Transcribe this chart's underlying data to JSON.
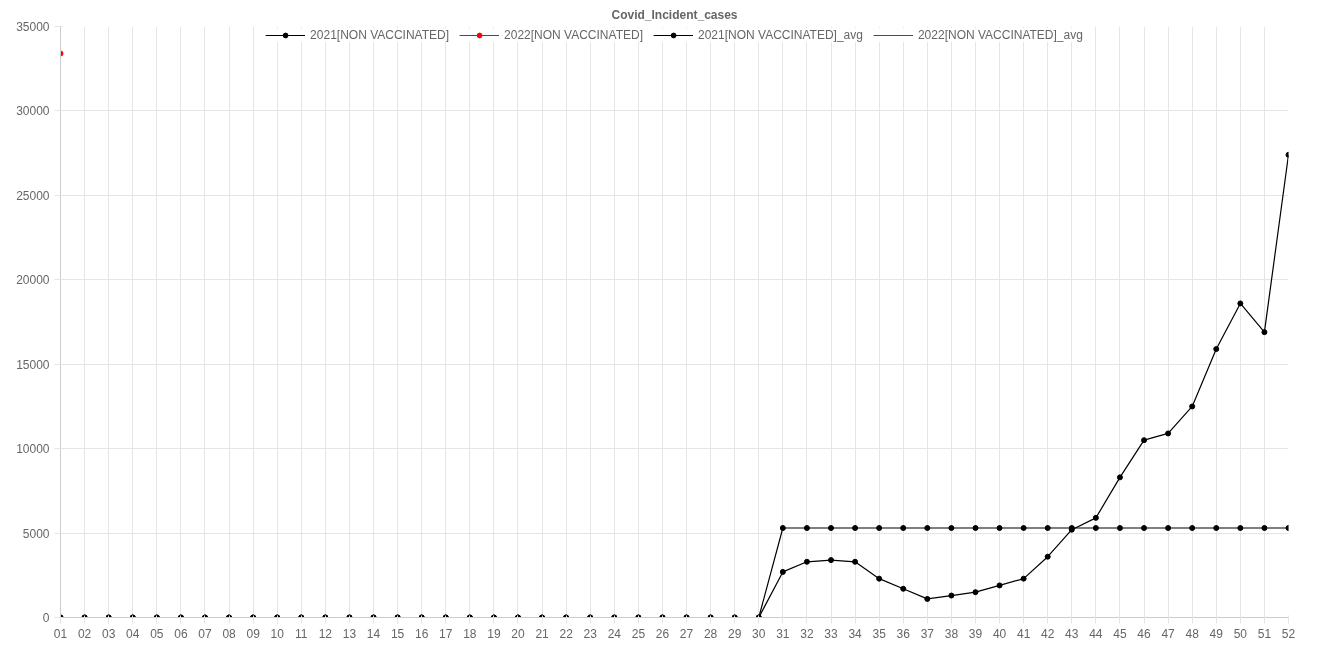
{
  "chart_data": {
    "type": "line",
    "title": "Covid_Incident_cases",
    "categories": [
      "01",
      "02",
      "03",
      "04",
      "05",
      "06",
      "07",
      "08",
      "09",
      "10",
      "11",
      "12",
      "13",
      "14",
      "15",
      "16",
      "17",
      "18",
      "19",
      "20",
      "21",
      "22",
      "23",
      "24",
      "25",
      "26",
      "27",
      "28",
      "29",
      "30",
      "31",
      "32",
      "33",
      "34",
      "35",
      "36",
      "37",
      "38",
      "39",
      "40",
      "41",
      "42",
      "43",
      "44",
      "45",
      "46",
      "47",
      "48",
      "49",
      "50",
      "51",
      "52"
    ],
    "series": [
      {
        "name": "2021[NON VACCINATED]",
        "color": "#000000",
        "values": [
          0,
          0,
          0,
          0,
          0,
          0,
          0,
          0,
          0,
          0,
          0,
          0,
          0,
          0,
          0,
          0,
          0,
          0,
          0,
          0,
          0,
          0,
          0,
          0,
          0,
          0,
          0,
          0,
          0,
          0,
          2700,
          3300,
          3400,
          3300,
          2300,
          1700,
          1100,
          1300,
          1500,
          1900,
          2300,
          3600,
          5200,
          5900,
          8300,
          10500,
          10900,
          12500,
          15900,
          18600,
          16900,
          27400
        ]
      },
      {
        "name": "2022[NON VACCINATED]",
        "color": "#ff0000",
        "values": [
          33400,
          null,
          null,
          null,
          null,
          null,
          null,
          null,
          null,
          null,
          null,
          null,
          null,
          null,
          null,
          null,
          null,
          null,
          null,
          null,
          null,
          null,
          null,
          null,
          null,
          null,
          null,
          null,
          null,
          null,
          null,
          null,
          null,
          null,
          null,
          null,
          null,
          null,
          null,
          null,
          null,
          null,
          null,
          null,
          null,
          null,
          null,
          null,
          null,
          null,
          null,
          null
        ]
      },
      {
        "name": "2021[NON VACCINATED]_avg",
        "color": "#000000",
        "values": [
          0,
          0,
          0,
          0,
          0,
          0,
          0,
          0,
          0,
          0,
          0,
          0,
          0,
          0,
          0,
          0,
          0,
          0,
          0,
          0,
          0,
          0,
          0,
          0,
          0,
          0,
          0,
          0,
          0,
          0,
          5300,
          5300,
          5300,
          5300,
          5300,
          5300,
          5300,
          5300,
          5300,
          5300,
          5300,
          5300,
          5300,
          5300,
          5300,
          5300,
          5300,
          5300,
          5300,
          5300,
          5300,
          5300
        ]
      },
      {
        "name": "2022[NON VACCINATED]_avg",
        "color": "#ff0000",
        "values": [
          null,
          null,
          null,
          null,
          null,
          null,
          null,
          null,
          null,
          null,
          null,
          null,
          null,
          null,
          null,
          null,
          null,
          null,
          null,
          null,
          null,
          null,
          null,
          null,
          null,
          null,
          null,
          null,
          null,
          null,
          null,
          null,
          null,
          null,
          null,
          null,
          null,
          null,
          null,
          null,
          null,
          null,
          null,
          null,
          null,
          null,
          null,
          null,
          null,
          null,
          null,
          null
        ]
      }
    ],
    "ylim": [
      0,
      35000
    ],
    "yticks": [
      0,
      5000,
      10000,
      15000,
      20000,
      25000,
      30000,
      35000
    ],
    "grid": true,
    "legend": "top",
    "marker": "circle",
    "line_style": "solid"
  }
}
